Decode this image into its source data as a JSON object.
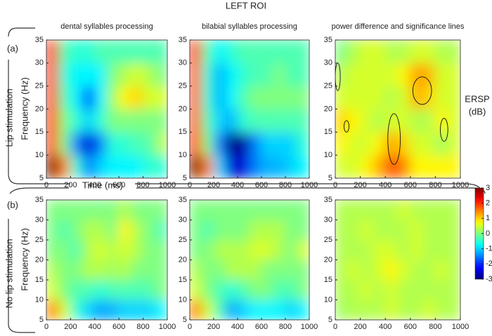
{
  "title": "LEFT ROI",
  "x_label": "Time (ms)",
  "rows": [
    {
      "letter": "(a)",
      "condition": "Lip stimulation",
      "y_label": "Frequency (Hz)"
    },
    {
      "letter": "(b)",
      "condition": "No lip stimulation",
      "y_label": "Frequency (Hz)"
    }
  ],
  "colorbar": {
    "label": [
      "ERSP",
      "(dB)"
    ],
    "colormap": "jet",
    "lim": [
      -3,
      3
    ],
    "ticks": [
      3,
      2,
      1,
      0,
      -1,
      -2,
      -3
    ]
  },
  "chart_data": [
    {
      "type": "heatmap",
      "title": "dental syllables processing",
      "x": [
        50,
        150,
        250,
        350,
        450,
        550,
        650,
        750,
        850,
        950
      ],
      "y": [
        7.5,
        12.5,
        17.5,
        22.5,
        27.5,
        32.5
      ],
      "values": [
        [
          3,
          1.5,
          -0.5,
          -1.5,
          -1,
          -0.8,
          -0.8,
          -0.8,
          -0.5,
          -0.5
        ],
        [
          2,
          0,
          -1.5,
          -2.5,
          -1.5,
          -0.5,
          -0.5,
          -0.3,
          -0.3,
          0.3
        ],
        [
          2,
          0,
          -0.5,
          -1,
          -0.5,
          0,
          0,
          0,
          0,
          0
        ],
        [
          2,
          -0.3,
          -0.8,
          -1.8,
          -0.8,
          0.2,
          0.8,
          1,
          0.5,
          0.5
        ],
        [
          2,
          -0.5,
          -0.8,
          -0.8,
          -0.8,
          0,
          0.3,
          0.5,
          0.3,
          0
        ],
        [
          2.2,
          -0.3,
          -0.5,
          -0.5,
          -0.3,
          -0.3,
          -0.3,
          -0.3,
          -0.3,
          -0.3
        ]
      ],
      "xlim": [
        0,
        1000
      ],
      "ylim": [
        5,
        35
      ],
      "xticks": [
        0,
        200,
        400,
        600,
        800,
        1000
      ],
      "yticks": [
        5,
        10,
        15,
        20,
        25,
        30,
        35
      ]
    },
    {
      "type": "heatmap",
      "title": "bilabial syllables processing",
      "x": [
        50,
        150,
        250,
        350,
        450,
        550,
        650,
        750,
        850,
        950
      ],
      "y": [
        7.5,
        12.5,
        17.5,
        22.5,
        27.5,
        32.5
      ],
      "values": [
        [
          3,
          1.5,
          -1,
          -2.5,
          -2.5,
          -1.5,
          -1.2,
          -1.2,
          -1,
          -0.8
        ],
        [
          2,
          0,
          -1.5,
          -3,
          -2.8,
          -1.5,
          -1,
          -1,
          -1,
          -0.5
        ],
        [
          1.8,
          -0.3,
          -1,
          -1.2,
          -0.5,
          -0.3,
          -0.3,
          -0.3,
          -0.3,
          -0.3
        ],
        [
          1.8,
          -0.5,
          -1.2,
          -0.8,
          -0.3,
          0,
          0,
          0,
          0,
          0
        ],
        [
          1.8,
          -0.5,
          -1.2,
          -0.8,
          -0.5,
          -0.3,
          -0.3,
          0,
          -0.3,
          -0.3
        ],
        [
          2,
          -0.3,
          -0.8,
          -0.5,
          -0.3,
          -0.3,
          -0.3,
          -0.3,
          -0.3,
          -0.3
        ]
      ],
      "xlim": [
        0,
        1000
      ],
      "ylim": [
        5,
        35
      ],
      "xticks": [
        0,
        200,
        400,
        600,
        800,
        1000
      ],
      "yticks": [
        5,
        10,
        15,
        20,
        25,
        30,
        35
      ]
    },
    {
      "type": "heatmap",
      "title": "power difference and significance lines",
      "x": [
        50,
        150,
        250,
        350,
        450,
        550,
        650,
        750,
        850,
        950
      ],
      "y": [
        7.5,
        12.5,
        17.5,
        22.5,
        27.5,
        32.5
      ],
      "values": [
        [
          0.5,
          0.5,
          0.8,
          1.2,
          1.8,
          1.5,
          0.8,
          0.8,
          0.8,
          0.8
        ],
        [
          0.8,
          0.5,
          0.5,
          0.8,
          1.3,
          1,
          0.5,
          0.5,
          0.2,
          0.5
        ],
        [
          1,
          0.8,
          0.5,
          0.3,
          0.5,
          0.5,
          0.3,
          0.3,
          0.8,
          0.5
        ],
        [
          0.5,
          0.5,
          0.5,
          0.5,
          0.3,
          0.5,
          1.2,
          1,
          0.5,
          0.5
        ],
        [
          0.3,
          0.5,
          0.5,
          0.5,
          0.5,
          0.8,
          1.3,
          1.2,
          0.5,
          0.5
        ],
        [
          0,
          0.3,
          0.5,
          0.5,
          0.3,
          0.3,
          0.5,
          0.5,
          0.3,
          0.3
        ]
      ],
      "significance_regions": [
        {
          "x": [
            420,
            520
          ],
          "y": [
            8,
            19
          ]
        },
        {
          "x": [
            620,
            770
          ],
          "y": [
            21,
            27
          ]
        },
        {
          "x": [
            840,
            900
          ],
          "y": [
            13,
            18
          ]
        },
        {
          "x": [
            70,
            110
          ],
          "y": [
            15,
            17.5
          ]
        },
        {
          "x": [
            0,
            40
          ],
          "y": [
            24,
            30
          ]
        }
      ],
      "xlim": [
        0,
        1000
      ],
      "ylim": [
        5,
        35
      ],
      "xticks": [
        0,
        200,
        400,
        600,
        800,
        1000
      ],
      "yticks": [
        5,
        10,
        15,
        20,
        25,
        30,
        35
      ]
    },
    {
      "type": "heatmap",
      "x": [
        50,
        150,
        250,
        350,
        450,
        550,
        650,
        750,
        850,
        950
      ],
      "y": [
        7.5,
        12.5,
        17.5,
        22.5,
        27.5,
        32.5
      ],
      "values": [
        [
          1.5,
          0.5,
          -0.5,
          -1,
          -1.3,
          -1.2,
          -1,
          -1,
          -1,
          -0.8
        ],
        [
          0.5,
          0,
          -0.3,
          -0.3,
          -0.5,
          -0.3,
          -0.3,
          -0.3,
          -0.3,
          0
        ],
        [
          0.3,
          0,
          0,
          0.3,
          0.3,
          0.2,
          0.3,
          0,
          0,
          0
        ],
        [
          0,
          0,
          -0.3,
          0.3,
          0.5,
          0.3,
          0.5,
          0.3,
          0,
          0
        ],
        [
          0,
          -0.3,
          0,
          0.3,
          0.3,
          0,
          0.8,
          0.3,
          0,
          -0.3
        ],
        [
          0,
          0,
          0,
          0,
          0,
          0,
          0.3,
          0,
          0,
          0
        ]
      ],
      "xlim": [
        0,
        1000
      ],
      "ylim": [
        5,
        35
      ],
      "xticks": [
        0,
        200,
        400,
        600,
        800,
        1000
      ],
      "yticks": [
        5,
        10,
        15,
        20,
        25,
        30,
        35
      ]
    },
    {
      "type": "heatmap",
      "x": [
        50,
        150,
        250,
        350,
        450,
        550,
        650,
        750,
        850,
        950
      ],
      "y": [
        7.5,
        12.5,
        17.5,
        22.5,
        27.5,
        32.5
      ],
      "values": [
        [
          1.5,
          0.5,
          -0.3,
          -1.3,
          -1,
          -0.8,
          -0.8,
          -0.8,
          -1,
          -0.8
        ],
        [
          0.5,
          0,
          -0.3,
          -0.5,
          -0.3,
          0,
          0,
          -0.3,
          -0.3,
          0
        ],
        [
          0.3,
          0,
          0,
          0.3,
          0.3,
          0.3,
          0,
          0,
          0,
          0
        ],
        [
          0,
          0,
          0.3,
          0.3,
          0.3,
          0.5,
          0.5,
          0.3,
          0,
          0.5
        ],
        [
          0,
          -0.3,
          0,
          0,
          0,
          0.3,
          0.3,
          0.3,
          0,
          0
        ],
        [
          0,
          0,
          0,
          0,
          0,
          0,
          0,
          0,
          0,
          0
        ]
      ],
      "xlim": [
        0,
        1000
      ],
      "ylim": [
        5,
        35
      ],
      "xticks": [
        0,
        200,
        400,
        600,
        800,
        1000
      ],
      "yticks": [
        5,
        10,
        15,
        20,
        25,
        30,
        35
      ]
    },
    {
      "type": "heatmap",
      "x": [
        50,
        150,
        250,
        350,
        450,
        550,
        650,
        750,
        850,
        950
      ],
      "y": [
        7.5,
        12.5,
        17.5,
        22.5,
        27.5,
        32.5
      ],
      "values": [
        [
          0.2,
          0.3,
          0.3,
          0.3,
          0.5,
          0.3,
          0.3,
          0.5,
          0.3,
          0.3
        ],
        [
          0.3,
          0.3,
          0.5,
          0.3,
          0.5,
          0.3,
          0.3,
          0.3,
          0.3,
          0.3
        ],
        [
          0.3,
          0.5,
          0.3,
          0.5,
          0.8,
          0.5,
          0.3,
          0.3,
          0.5,
          0.3
        ],
        [
          0.3,
          0.3,
          0.3,
          0.5,
          0.5,
          0.3,
          0.5,
          0.3,
          0.3,
          0.3
        ],
        [
          0.3,
          0.3,
          0.5,
          0.3,
          0.3,
          0.3,
          0.5,
          0.3,
          0.3,
          0.3
        ],
        [
          0.3,
          0.3,
          0.3,
          0.3,
          0.3,
          0.5,
          0.3,
          0.3,
          0.3,
          0.3
        ]
      ],
      "xlim": [
        0,
        1000
      ],
      "ylim": [
        5,
        35
      ],
      "xticks": [
        0,
        200,
        400,
        600,
        800,
        1000
      ],
      "yticks": [
        5,
        10,
        15,
        20,
        25,
        30,
        35
      ]
    }
  ]
}
